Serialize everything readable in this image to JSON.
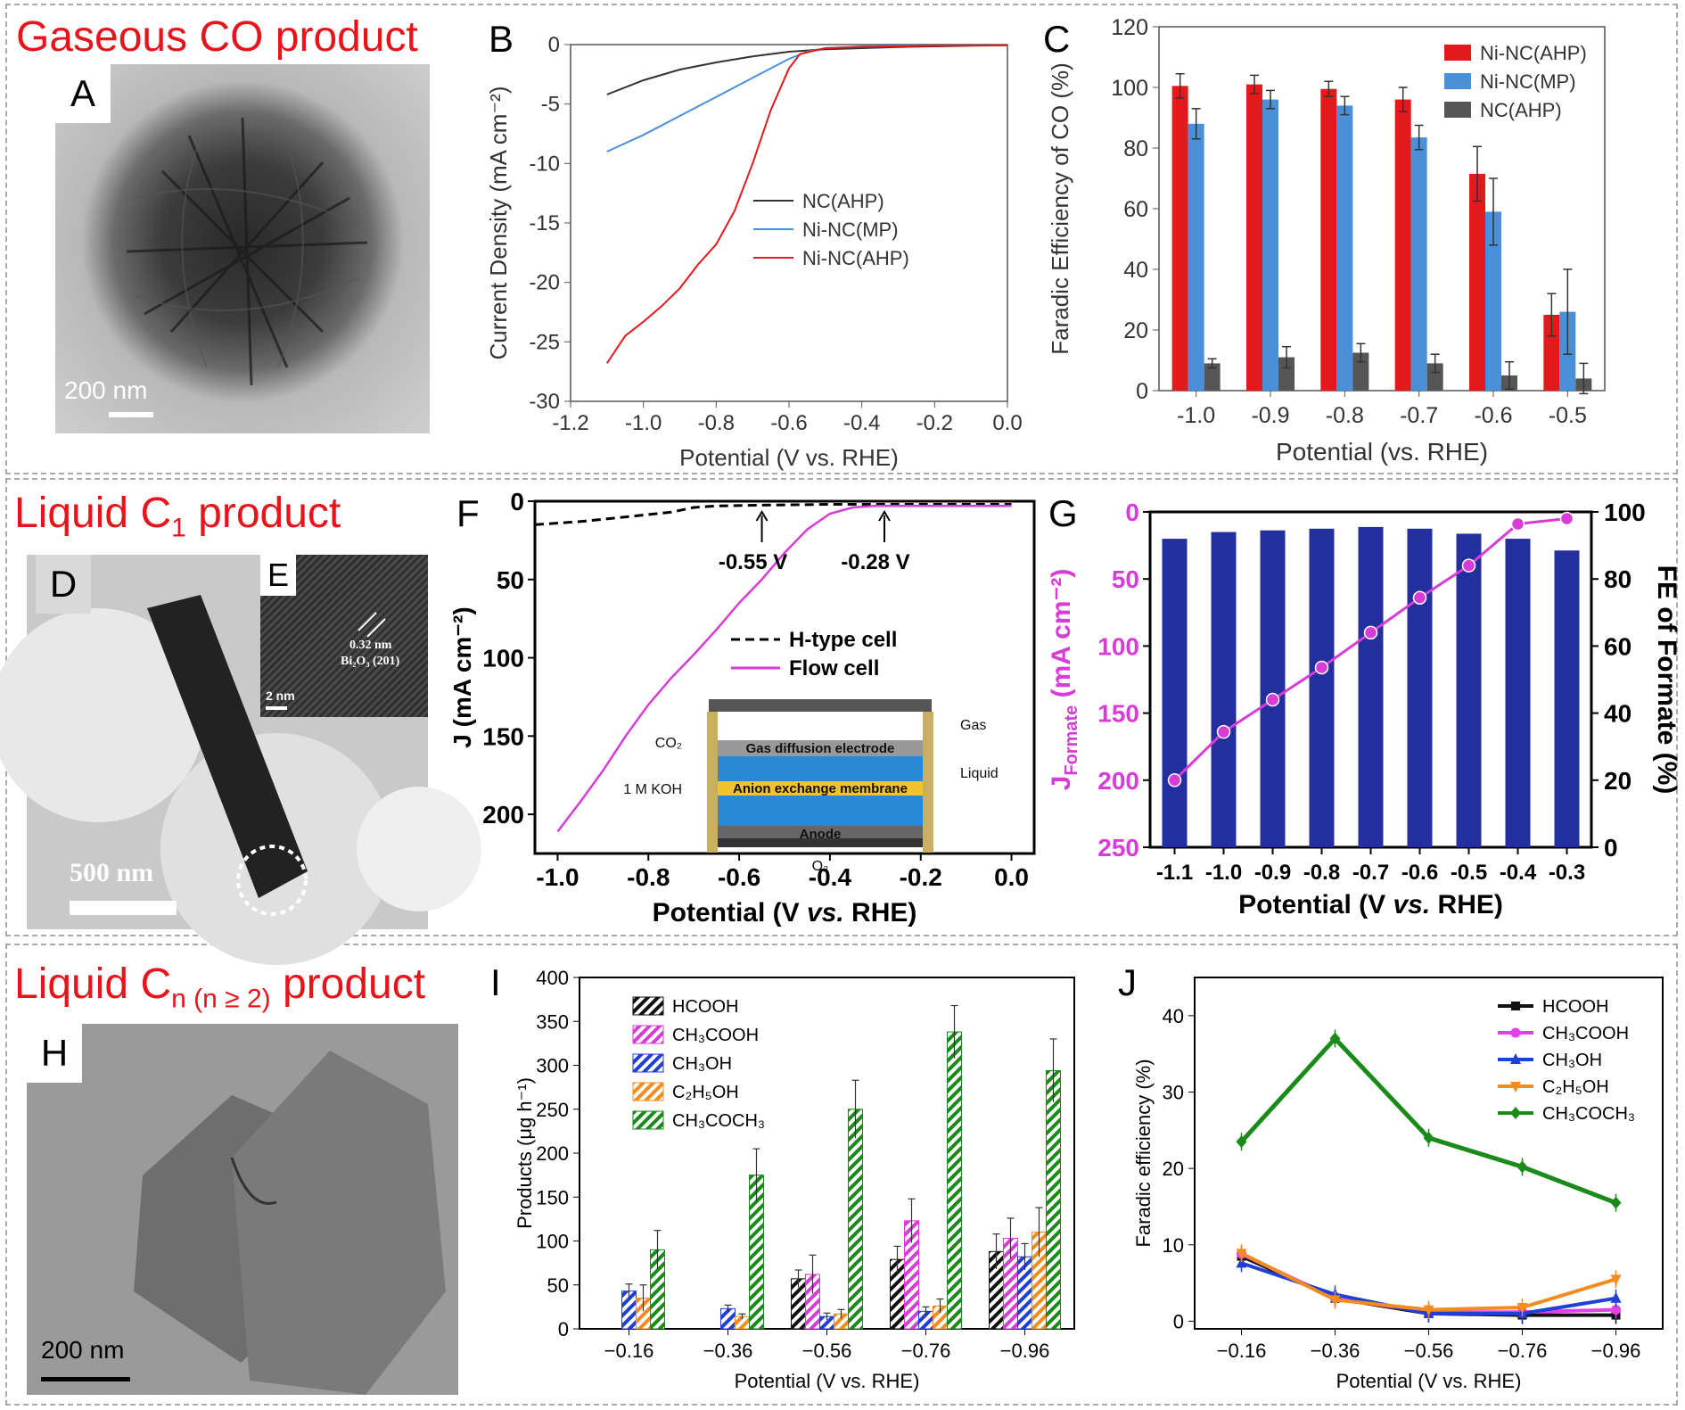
{
  "rows": {
    "gaseous": "Gaseous CO product",
    "liquid_c1_main": "Liquid C",
    "liquid_c1_sub": "1",
    "liquid_c1_tail": " product",
    "liquid_cn_main": "Liquid C",
    "liquid_cn_sub": "n (n ≥ 2)",
    "liquid_cn_tail": " product"
  },
  "panels": {
    "A": "A",
    "B": "B",
    "C": "C",
    "D": "D",
    "E": "E",
    "F": "F",
    "G": "G",
    "H": "H",
    "I": "I",
    "J": "J"
  },
  "micrographs": {
    "A_scale": "200 nm",
    "D_scale": "500 nm",
    "E_scale": "2 nm",
    "E_lattice": "0.32 nm",
    "E_plane": "Bi₂O₃ (201)",
    "H_scale": "200 nm"
  },
  "colors": {
    "red": "#e31a1c",
    "blue": "#4a90d9",
    "gray": "#555555",
    "magenta": "#d63cd6",
    "navy": "#232f9c",
    "green": "#1a8a1a",
    "orange": "#f28c1e"
  },
  "chart_data": [
    {
      "id": "B",
      "type": "line",
      "xlabel": "Potential (V vs. RHE)",
      "ylabel": "Current Density (mA cm⁻²)",
      "xlim": [
        -1.2,
        0.0
      ],
      "ylim": [
        -30,
        0
      ],
      "xticks": [
        "-1.2",
        "-1.0",
        "-0.8",
        "-0.6",
        "-0.4",
        "-0.2",
        "0.0"
      ],
      "yticks": [
        "0",
        "-5",
        "-10",
        "-15",
        "-20",
        "-25",
        "-30"
      ],
      "legend": "center-right",
      "series": [
        {
          "name": "NC(AHP)",
          "color": "#333333",
          "x": [
            -1.1,
            -1.0,
            -0.9,
            -0.8,
            -0.7,
            -0.6,
            -0.5,
            -0.4,
            -0.3,
            -0.2,
            -0.1,
            0.0
          ],
          "y": [
            -4.2,
            -3.0,
            -2.1,
            -1.5,
            -1.0,
            -0.6,
            -0.4,
            -0.3,
            -0.2,
            -0.15,
            -0.1,
            -0.05
          ]
        },
        {
          "name": "Ni-NC(MP)",
          "color": "#4a90d9",
          "x": [
            -1.1,
            -1.0,
            -0.9,
            -0.8,
            -0.7,
            -0.6,
            -0.55,
            -0.5,
            -0.4,
            -0.3,
            -0.2,
            0.0
          ],
          "y": [
            -9.0,
            -7.6,
            -6.0,
            -4.4,
            -2.8,
            -1.2,
            -0.6,
            -0.3,
            -0.15,
            -0.1,
            -0.08,
            -0.05
          ]
        },
        {
          "name": "Ni-NC(AHP)",
          "color": "#e31a1c",
          "x": [
            -1.1,
            -1.05,
            -1.0,
            -0.95,
            -0.9,
            -0.85,
            -0.8,
            -0.75,
            -0.7,
            -0.65,
            -0.6,
            -0.57,
            -0.5,
            -0.4,
            -0.2,
            0.0
          ],
          "y": [
            -26.8,
            -24.5,
            -23.3,
            -22.0,
            -20.5,
            -18.5,
            -16.8,
            -14.0,
            -10.0,
            -5.5,
            -2.0,
            -0.8,
            -0.3,
            -0.2,
            -0.1,
            -0.05
          ]
        }
      ]
    },
    {
      "id": "C",
      "type": "bar",
      "xlabel": "Potential (vs. RHE)",
      "ylabel": "Faradic Efficiency of CO (%)",
      "ylim": [
        0,
        120
      ],
      "yticks": [
        "0",
        "20",
        "40",
        "60",
        "80",
        "100",
        "120"
      ],
      "categories": [
        "-1.0",
        "-0.9",
        "-0.8",
        "-0.7",
        "-0.6",
        "-0.5"
      ],
      "legend": "top-right",
      "series": [
        {
          "name": "Ni-NC(AHP)",
          "color": "#e31a1c",
          "values": [
            100.5,
            101,
            99.5,
            96,
            71.5,
            25
          ],
          "errors": [
            4,
            3,
            2.5,
            4,
            9,
            7
          ]
        },
        {
          "name": "Ni-NC(MP)",
          "color": "#4a90d9",
          "values": [
            88,
            96,
            94,
            83.5,
            59,
            26
          ],
          "errors": [
            5,
            3,
            3,
            4,
            11,
            14
          ]
        },
        {
          "name": "NC(AHP)",
          "color": "#555555",
          "values": [
            9,
            11,
            12.5,
            9,
            5,
            4
          ],
          "errors": [
            1.5,
            3.5,
            3,
            3,
            4.5,
            5
          ]
        }
      ]
    },
    {
      "id": "F",
      "type": "line",
      "xlabel_main": "Potential (V ",
      "xlabel_ital": "vs.",
      "xlabel_tail": " RHE)",
      "ylabel": "J (mA cm⁻²)",
      "xlim": [
        -1.05,
        0.05
      ],
      "ylim": [
        0,
        225
      ],
      "y_inverted": true,
      "xticks": [
        "-1.0",
        "-0.8",
        "-0.6",
        "-0.4",
        "-0.2",
        "0.0"
      ],
      "yticks": [
        "0",
        "50",
        "100",
        "150",
        "200"
      ],
      "annotations": [
        "-0.55 V",
        "-0.28 V"
      ],
      "legend": "center-right",
      "inset_labels": {
        "co2": "CO₂",
        "koh": "1 M KOH",
        "gas": "Gas",
        "liquid": "Liquid",
        "gde": "Gas diffusion electrode",
        "aem": "Anion exchange membrane",
        "anode": "Anode",
        "o2": "O₂"
      },
      "series": [
        {
          "name": "H-type cell",
          "color": "#000000",
          "dash": true,
          "x": [
            -1.05,
            -0.95,
            -0.85,
            -0.75,
            -0.7,
            -0.65,
            -0.55,
            -0.4,
            -0.2,
            0.0
          ],
          "y": [
            15,
            13,
            10,
            7,
            4,
            3,
            2.5,
            2,
            2,
            2
          ]
        },
        {
          "name": "Flow cell",
          "color": "#d63cd6",
          "dash": false,
          "x": [
            -1.0,
            -0.95,
            -0.9,
            -0.85,
            -0.8,
            -0.75,
            -0.7,
            -0.65,
            -0.6,
            -0.55,
            -0.5,
            -0.45,
            -0.4,
            -0.35,
            -0.3,
            -0.2,
            -0.1,
            0.0
          ],
          "y": [
            211,
            192,
            172,
            150,
            130,
            113,
            98,
            82,
            65,
            50,
            33,
            18,
            8,
            4,
            3,
            3,
            3,
            3
          ]
        }
      ]
    },
    {
      "id": "G",
      "type": "bar",
      "xlabel_main": "Potential (V ",
      "xlabel_ital": "vs.",
      "xlabel_tail": " RHE)",
      "ylabel_left_main": "J",
      "ylabel_left_sub": "Formate",
      "ylabel_left_tail": " (mA cm⁻²)",
      "ylabel_right": "FE of Formate (%)",
      "categories": [
        "-1.1",
        "-1.0",
        "-0.9",
        "-0.8",
        "-0.7",
        "-0.6",
        "-0.5",
        "-0.4",
        "-0.3"
      ],
      "left_ylim": [
        0,
        250
      ],
      "left_inverted": true,
      "left_yticks": [
        "0",
        "50",
        "100",
        "150",
        "200",
        "250"
      ],
      "right_ylim": [
        0,
        100
      ],
      "right_yticks": [
        "0",
        "20",
        "40",
        "60",
        "80",
        "100"
      ],
      "series": [
        {
          "name": "FE of Formate",
          "kind": "bar",
          "axis": "right",
          "color": "#232f9c",
          "values": [
            92,
            94,
            94.5,
            95,
            95.5,
            95,
            93.5,
            92,
            88.5
          ]
        },
        {
          "name": "J Formate",
          "kind": "line",
          "axis": "left",
          "color": "#d63cd6",
          "values": [
            200,
            164,
            140,
            116,
            90,
            64,
            40,
            9,
            5
          ]
        }
      ]
    },
    {
      "id": "I",
      "type": "bar",
      "xlabel": "Potential (V vs. RHE)",
      "ylabel": "Products (μg h⁻¹)",
      "ylim": [
        0,
        400
      ],
      "yticks": [
        "0",
        "50",
        "100",
        "150",
        "200",
        "250",
        "300",
        "350",
        "400"
      ],
      "categories": [
        "−0.16",
        "−0.36",
        "−0.56",
        "−0.76",
        "−0.96"
      ],
      "legend": "top-left",
      "series": [
        {
          "name": "HCOOH",
          "color": "#111111",
          "values": [
            0,
            0,
            57,
            79,
            88
          ],
          "errors": [
            0,
            0,
            10,
            15,
            20
          ]
        },
        {
          "name": "CH₃COOH",
          "color": "#d63cd6",
          "values": [
            0,
            0,
            62,
            123,
            103
          ],
          "errors": [
            0,
            0,
            22,
            25,
            23
          ]
        },
        {
          "name": "CH₃OH",
          "color": "#1f3fd6",
          "values": [
            43,
            23,
            14,
            20,
            82
          ],
          "errors": [
            8,
            4,
            4,
            5,
            15
          ]
        },
        {
          "name": "C₂H₅OH",
          "color": "#f28c1e",
          "values": [
            35,
            14,
            17,
            26,
            110
          ],
          "errors": [
            15,
            3,
            5,
            8,
            28
          ]
        },
        {
          "name": "CH₃COCH₃",
          "color": "#1a8a1a",
          "values": [
            90,
            175,
            250,
            338,
            294
          ],
          "errors": [
            22,
            30,
            33,
            30,
            36
          ]
        }
      ]
    },
    {
      "id": "J",
      "type": "line",
      "xlabel": "Potential (V vs. RHE)",
      "ylabel": "Faradic efficiency (%)",
      "ylim": [
        -1,
        45
      ],
      "yticks": [
        "0",
        "10",
        "20",
        "30",
        "40"
      ],
      "categories": [
        "−0.16",
        "−0.36",
        "−0.56",
        "−0.76",
        "−0.96"
      ],
      "legend": "top-right",
      "series": [
        {
          "name": "HCOOH",
          "color": "#111111",
          "marker": "square",
          "values": [
            8.5,
            3.0,
            1.0,
            0.8,
            0.8
          ]
        },
        {
          "name": "CH₃COOH",
          "color": "#e83ee8",
          "marker": "circle",
          "values": [
            8.8,
            3.0,
            1.2,
            1.2,
            1.5
          ]
        },
        {
          "name": "CH₃OH",
          "color": "#1f3fd6",
          "marker": "triangle",
          "values": [
            7.6,
            3.5,
            1.0,
            1.0,
            3.0
          ]
        },
        {
          "name": "C₂H₅OH",
          "color": "#f28c1e",
          "marker": "tri-down",
          "values": [
            8.9,
            2.8,
            1.5,
            1.8,
            5.5
          ]
        },
        {
          "name": "CH₃COCH₃",
          "color": "#1a8a1a",
          "marker": "diamond",
          "values": [
            23.5,
            37,
            24,
            20.2,
            15.5
          ]
        }
      ]
    }
  ]
}
